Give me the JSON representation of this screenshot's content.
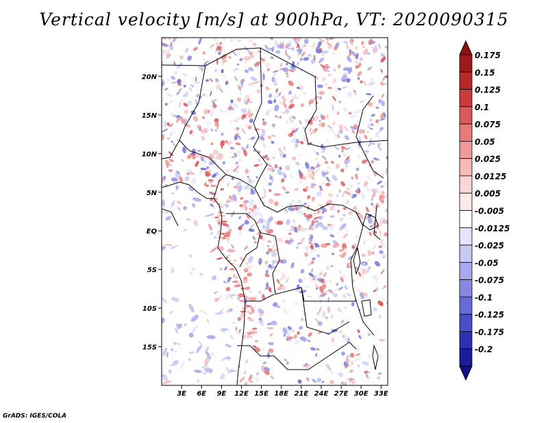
{
  "title": "Vertical velocity [m/s] at 900hPa, VT: 2020090315",
  "footer": "GrADS: IGES/COLA",
  "map": {
    "region": "Central Africa",
    "variable": "Vertical velocity",
    "units": "m/s",
    "level": "900hPa",
    "valid_time": "2020090315",
    "lon_range": [
      0,
      34
    ],
    "lat_range": [
      -20,
      25
    ],
    "x_ticks": [
      {
        "lon": 3,
        "label": "3E"
      },
      {
        "lon": 6,
        "label": "6E"
      },
      {
        "lon": 9,
        "label": "9E"
      },
      {
        "lon": 12,
        "label": "12E"
      },
      {
        "lon": 15,
        "label": "15E"
      },
      {
        "lon": 18,
        "label": "18E"
      },
      {
        "lon": 21,
        "label": "21E"
      },
      {
        "lon": 24,
        "label": "24E"
      },
      {
        "lon": 27,
        "label": "27E"
      },
      {
        "lon": 30,
        "label": "30E"
      },
      {
        "lon": 33,
        "label": "33E"
      }
    ],
    "y_ticks": [
      {
        "lat": 20,
        "label": "20N"
      },
      {
        "lat": 15,
        "label": "15N"
      },
      {
        "lat": 10,
        "label": "10N"
      },
      {
        "lat": 5,
        "label": "5N"
      },
      {
        "lat": 0,
        "label": "EQ"
      },
      {
        "lat": -5,
        "label": "5S"
      },
      {
        "lat": -10,
        "label": "10S"
      },
      {
        "lat": -15,
        "label": "15S"
      }
    ]
  },
  "colorbar": {
    "levels": [
      {
        "label": "0.175",
        "color": "#a01818"
      },
      {
        "label": "0.15",
        "color": "#b82828"
      },
      {
        "label": "0.125",
        "color": "#cc3c3c"
      },
      {
        "label": "0.1",
        "color": "#dc5a5a"
      },
      {
        "label": "0.075",
        "color": "#e87a7a"
      },
      {
        "label": "0.05",
        "color": "#f09a9a"
      },
      {
        "label": "0.025",
        "color": "#f6baba"
      },
      {
        "label": "0.0125",
        "color": "#fad6d6"
      },
      {
        "label": "0.005",
        "color": "#fdeaea"
      },
      {
        "label": "-0.005",
        "color": "#ffffff"
      },
      {
        "label": "-0.0125",
        "color": "#e4e4fa"
      },
      {
        "label": "-0.025",
        "color": "#c8c8f4"
      },
      {
        "label": "-0.05",
        "color": "#a8a8ee"
      },
      {
        "label": "-0.075",
        "color": "#8888e4"
      },
      {
        "label": "-0.1",
        "color": "#6a6ad8"
      },
      {
        "label": "-0.125",
        "color": "#4c4cc8"
      },
      {
        "label": "-0.175",
        "color": "#3030b4"
      },
      {
        "label": "-0.2",
        "color": "#1c1c9c"
      }
    ],
    "top_arrow_color": "#8c1010",
    "bottom_arrow_color": "#101088"
  }
}
